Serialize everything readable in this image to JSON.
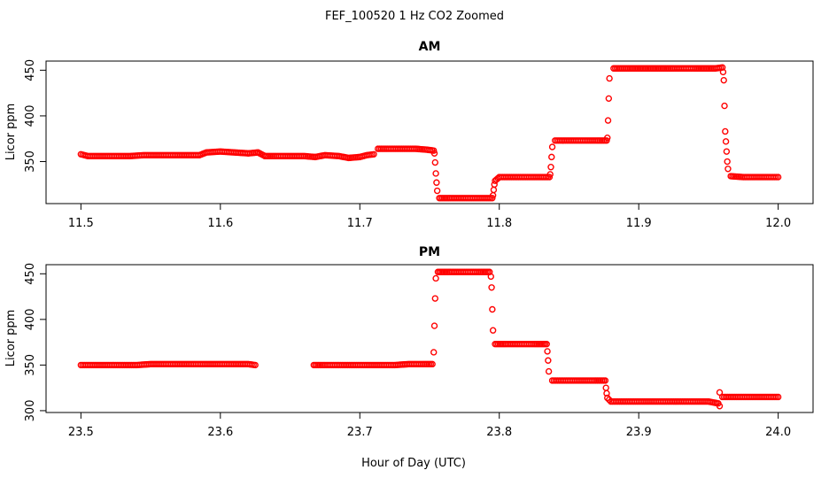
{
  "figure": {
    "title": "FEF_100520  1 Hz CO2 Zoomed",
    "xlabel": "Hour of Day (UTC)"
  },
  "colors": {
    "points": "#ff0000",
    "axes": "#000000",
    "background": "#ffffff"
  },
  "chart_data": [
    {
      "type": "scatter",
      "title": "AM",
      "ylabel": "Licor ppm",
      "xlim": [
        11.475,
        12.025
      ],
      "ylim": [
        304,
        460
      ],
      "xticks": [
        "11.5",
        "11.6",
        "11.7",
        "11.8",
        "11.9",
        "12.0"
      ],
      "yticks": [
        "350",
        "400",
        "450"
      ],
      "grid": false,
      "marker": "open circle",
      "series": [
        {
          "points": [
            [
              11.5,
              358
            ],
            [
              11.505,
              356
            ],
            [
              11.515,
              356
            ],
            [
              11.525,
              356
            ],
            [
              11.535,
              356
            ],
            [
              11.545,
              357
            ],
            [
              11.555,
              357
            ],
            [
              11.565,
              357
            ],
            [
              11.575,
              357
            ],
            [
              11.585,
              357
            ],
            [
              11.59,
              360
            ],
            [
              11.6,
              361
            ],
            [
              11.61,
              360
            ],
            [
              11.62,
              359
            ],
            [
              11.627,
              360
            ],
            [
              11.632,
              356
            ],
            [
              11.64,
              356
            ],
            [
              11.65,
              356
            ],
            [
              11.66,
              356
            ],
            [
              11.668,
              355
            ],
            [
              11.675,
              357
            ],
            [
              11.685,
              356
            ],
            [
              11.692,
              354
            ],
            [
              11.7,
              355
            ],
            [
              11.705,
              357
            ],
            [
              11.71,
              358
            ],
            [
              11.713,
              364
            ],
            [
              11.72,
              364
            ],
            [
              11.73,
              364
            ],
            [
              11.74,
              364
            ],
            [
              11.748,
              363
            ],
            [
              11.753,
              362
            ],
            [
              11.7535,
              359
            ],
            [
              11.754,
              349
            ],
            [
              11.7545,
              337
            ],
            [
              11.755,
              327
            ],
            [
              11.7555,
              318
            ],
            [
              11.757,
              310
            ],
            [
              11.765,
              310
            ],
            [
              11.775,
              310
            ],
            [
              11.785,
              310
            ],
            [
              11.795,
              310
            ],
            [
              11.7955,
              313
            ],
            [
              11.796,
              319
            ],
            [
              11.7965,
              325
            ],
            [
              11.797,
              329
            ],
            [
              11.8,
              333
            ],
            [
              11.81,
              333
            ],
            [
              11.82,
              333
            ],
            [
              11.83,
              333
            ],
            [
              11.836,
              333
            ],
            [
              11.8365,
              336
            ],
            [
              11.837,
              344
            ],
            [
              11.8375,
              355
            ],
            [
              11.838,
              366
            ],
            [
              11.84,
              373
            ],
            [
              11.85,
              373
            ],
            [
              11.86,
              373
            ],
            [
              11.87,
              373
            ],
            [
              11.877,
              373
            ],
            [
              11.8775,
              376
            ],
            [
              11.878,
              395
            ],
            [
              11.8785,
              419
            ],
            [
              11.879,
              441
            ],
            [
              11.882,
              452
            ],
            [
              11.895,
              452
            ],
            [
              11.91,
              452
            ],
            [
              11.925,
              452
            ],
            [
              11.94,
              452
            ],
            [
              11.955,
              452
            ],
            [
              11.96,
              453
            ],
            [
              11.9605,
              448
            ],
            [
              11.961,
              439
            ],
            [
              11.9615,
              411
            ],
            [
              11.962,
              383
            ],
            [
              11.9625,
              372
            ],
            [
              11.963,
              361
            ],
            [
              11.9635,
              350
            ],
            [
              11.964,
              342
            ],
            [
              11.966,
              334
            ],
            [
              11.975,
              333
            ],
            [
              11.985,
              333
            ],
            [
              11.995,
              333
            ],
            [
              12.0,
              333
            ]
          ]
        }
      ]
    },
    {
      "type": "scatter",
      "title": "PM",
      "ylabel": "Licor ppm",
      "xlim": [
        23.475,
        24.025
      ],
      "ylim": [
        298,
        460
      ],
      "xticks": [
        "23.5",
        "23.6",
        "23.7",
        "23.8",
        "23.9",
        "24.0"
      ],
      "yticks": [
        "300",
        "350",
        "400",
        "450"
      ],
      "grid": false,
      "marker": "open circle",
      "series": [
        {
          "points": [
            [
              23.5,
              350
            ],
            [
              23.51,
              350
            ],
            [
              23.52,
              350
            ],
            [
              23.53,
              350
            ],
            [
              23.54,
              350
            ],
            [
              23.55,
              351
            ],
            [
              23.56,
              351
            ],
            [
              23.57,
              351
            ],
            [
              23.58,
              351
            ],
            [
              23.59,
              351
            ],
            [
              23.6,
              351
            ],
            [
              23.61,
              351
            ],
            [
              23.62,
              351
            ],
            [
              23.625,
              350
            ],
            [
              23.667,
              350
            ],
            [
              23.675,
              350
            ],
            [
              23.685,
              350
            ],
            [
              23.695,
              350
            ],
            [
              23.705,
              350
            ],
            [
              23.715,
              350
            ],
            [
              23.725,
              350
            ],
            [
              23.735,
              351
            ],
            [
              23.745,
              351
            ],
            [
              23.752,
              351
            ],
            [
              23.753,
              364
            ],
            [
              23.7535,
              393
            ],
            [
              23.754,
              423
            ],
            [
              23.7545,
              445
            ],
            [
              23.756,
              452
            ],
            [
              23.765,
              452
            ],
            [
              23.775,
              452
            ],
            [
              23.785,
              452
            ],
            [
              23.793,
              452
            ],
            [
              23.794,
              447
            ],
            [
              23.7945,
              435
            ],
            [
              23.795,
              411
            ],
            [
              23.7955,
              388
            ],
            [
              23.797,
              373
            ],
            [
              23.805,
              373
            ],
            [
              23.815,
              373
            ],
            [
              23.825,
              373
            ],
            [
              23.834,
              373
            ],
            [
              23.8345,
              365
            ],
            [
              23.835,
              355
            ],
            [
              23.8355,
              343
            ],
            [
              23.838,
              333
            ],
            [
              23.848,
              333
            ],
            [
              23.858,
              333
            ],
            [
              23.868,
              333
            ],
            [
              23.876,
              333
            ],
            [
              23.8765,
              325
            ],
            [
              23.877,
              319
            ],
            [
              23.8775,
              314
            ],
            [
              23.88,
              310
            ],
            [
              23.89,
              310
            ],
            [
              23.9,
              310
            ],
            [
              23.91,
              310
            ],
            [
              23.92,
              310
            ],
            [
              23.93,
              310
            ],
            [
              23.94,
              310
            ],
            [
              23.95,
              310
            ],
            [
              23.957,
              308
            ],
            [
              23.958,
              305
            ],
            [
              23.958,
              320
            ],
            [
              23.96,
              315
            ],
            [
              23.97,
              315
            ],
            [
              23.98,
              315
            ],
            [
              23.99,
              315
            ],
            [
              24.0,
              315
            ]
          ]
        }
      ]
    }
  ]
}
